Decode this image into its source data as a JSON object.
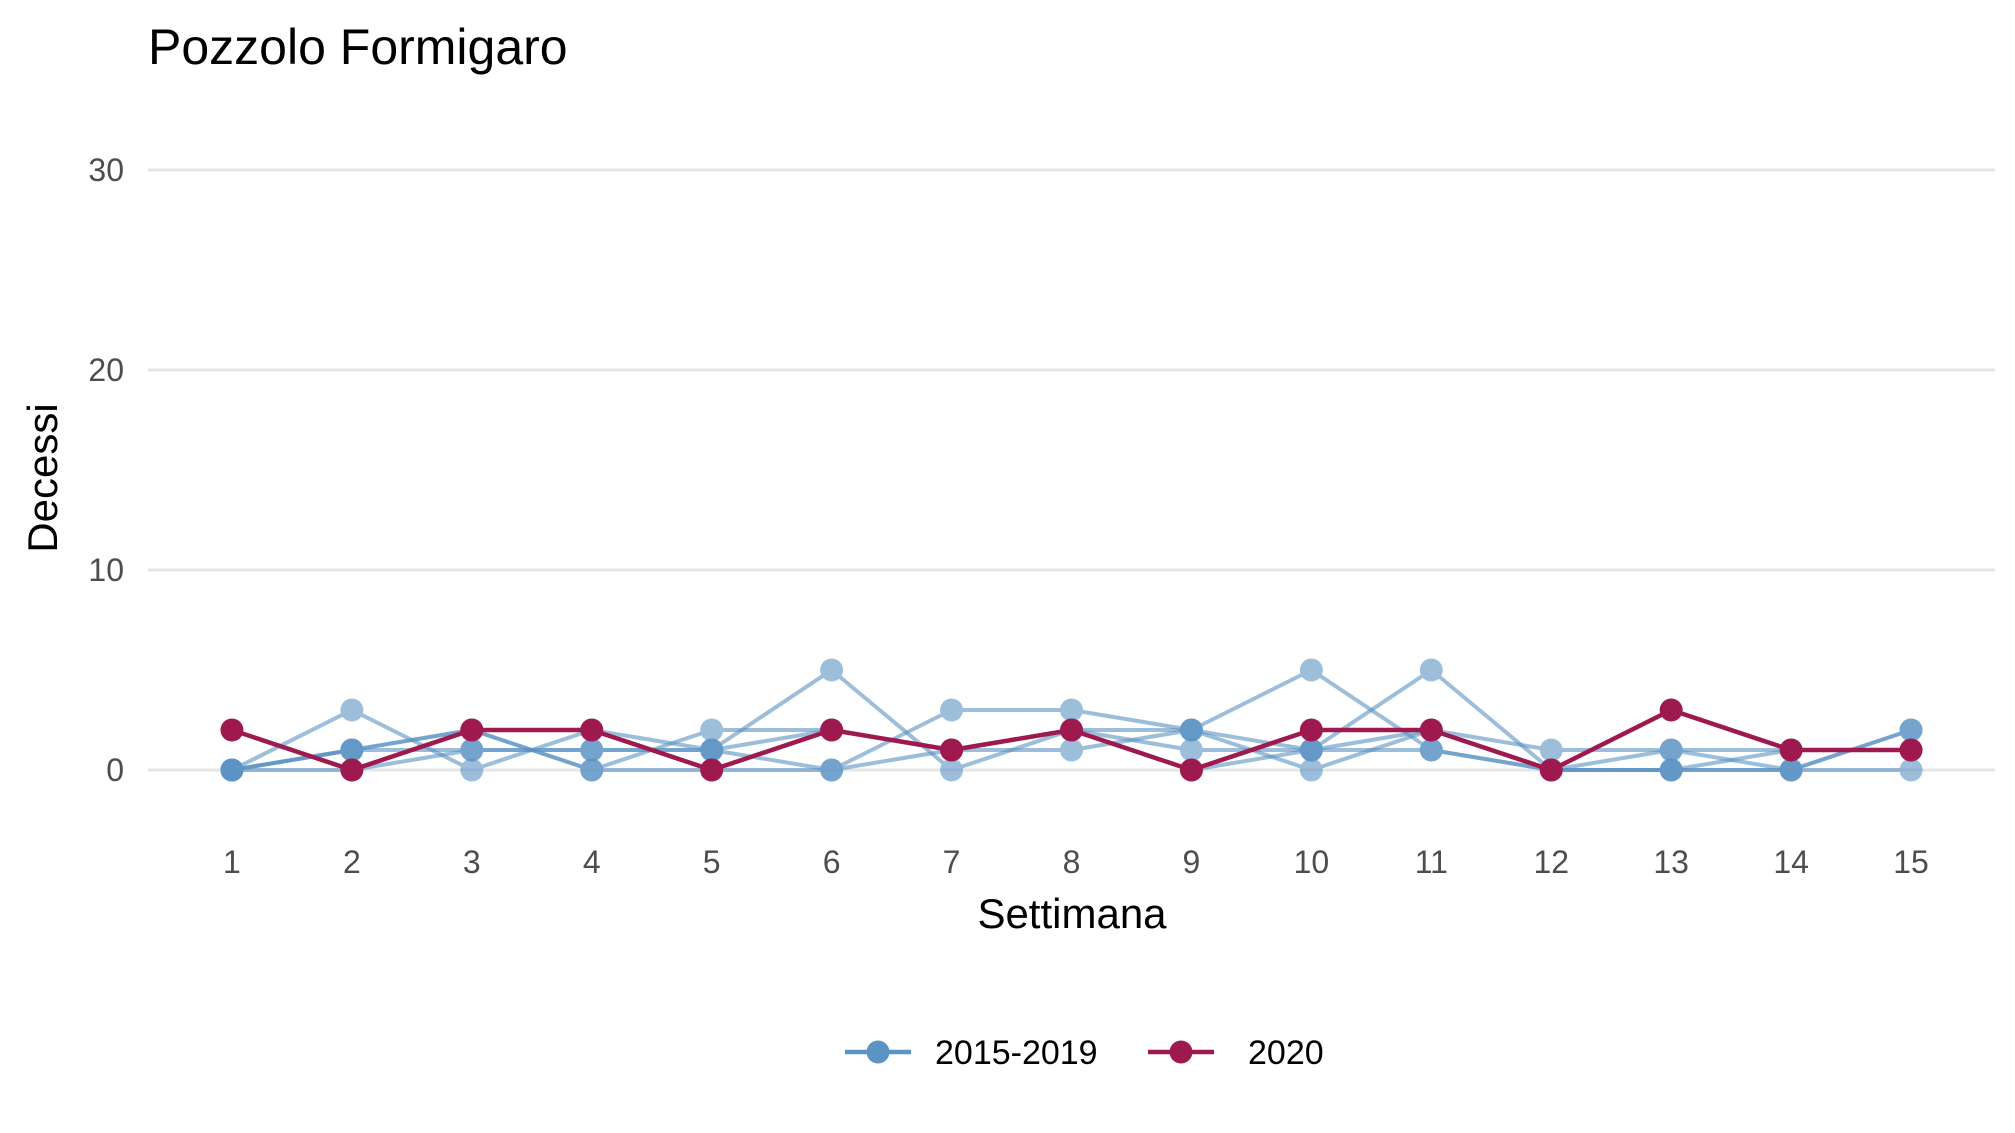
{
  "chart_data": {
    "type": "line",
    "title": "Pozzolo Formigaro",
    "xlabel": "Settimana",
    "ylabel": "Decessi",
    "x": [
      1,
      2,
      3,
      4,
      5,
      6,
      7,
      8,
      9,
      10,
      11,
      12,
      13,
      14,
      15
    ],
    "xlim": [
      0.3,
      15.7
    ],
    "ylim": [
      -2.5,
      32
    ],
    "yticks": [
      0,
      10,
      20,
      30
    ],
    "grid": "horizontal",
    "legend_position": "bottom",
    "colors": {
      "baseline": "#5b93c4",
      "current": "#9e1a4e"
    },
    "series": [
      {
        "name": "2015-2019",
        "group": "baseline",
        "values": [
          0,
          3,
          0,
          2,
          1,
          0,
          3,
          3,
          2,
          0,
          2,
          1,
          1,
          1,
          1
        ]
      },
      {
        "name": "",
        "group": "baseline",
        "values": [
          0,
          1,
          2,
          0,
          2,
          2,
          1,
          1,
          2,
          5,
          1,
          0,
          0,
          0,
          2
        ]
      },
      {
        "name": "",
        "group": "baseline",
        "values": [
          0,
          1,
          1,
          1,
          1,
          5,
          0,
          2,
          0,
          1,
          5,
          0,
          1,
          0,
          0
        ]
      },
      {
        "name": "",
        "group": "baseline",
        "values": [
          0,
          1,
          2,
          0,
          0,
          0,
          1,
          2,
          1,
          1,
          2,
          0,
          0,
          0,
          2
        ]
      },
      {
        "name": "",
        "group": "baseline",
        "values": [
          0,
          0,
          1,
          1,
          1,
          2,
          1,
          2,
          2,
          1,
          1,
          0,
          0,
          1,
          1
        ]
      },
      {
        "name": "2020",
        "group": "current",
        "values": [
          2,
          0,
          2,
          2,
          0,
          2,
          1,
          2,
          0,
          2,
          2,
          0,
          3,
          1,
          1
        ]
      }
    ],
    "legend": [
      {
        "label": "2015-2019",
        "group": "baseline"
      },
      {
        "label": "2020",
        "group": "current"
      }
    ]
  }
}
